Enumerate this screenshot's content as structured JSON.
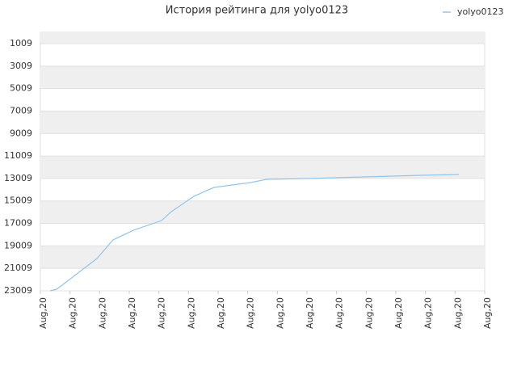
{
  "chart_data": {
    "type": "line",
    "title": "История рейтинга для yolyo0123",
    "x": [
      0.33,
      0.55,
      1.09,
      1.91,
      2.45,
      3.14,
      4.09,
      4.42,
      5.18,
      5.86,
      7.09,
      7.64,
      9.0,
      10.91,
      12.82,
      14.13
    ],
    "series": [
      {
        "name": "yolyo0123",
        "color": "#92c5ee",
        "values": [
          23009,
          22866,
          21788,
          20134,
          18481,
          17618,
          16756,
          15965,
          14598,
          13807,
          13376,
          13088,
          13016,
          12873,
          12729,
          12657
        ]
      }
    ],
    "ylim": [
      23009,
      1
    ],
    "yticks": [
      1009,
      3009,
      5009,
      7009,
      9009,
      11009,
      13009,
      15009,
      17009,
      19009,
      21009,
      23009
    ],
    "xlim": [
      0,
      15
    ],
    "xticks": [
      {
        "value": 0,
        "label": "Aug,20"
      },
      {
        "value": 1,
        "label": "Aug,20"
      },
      {
        "value": 2,
        "label": "Aug,20"
      },
      {
        "value": 3,
        "label": "Aug,20"
      },
      {
        "value": 4,
        "label": "Aug,20"
      },
      {
        "value": 5,
        "label": "Aug,20"
      },
      {
        "value": 6,
        "label": "Aug,20"
      },
      {
        "value": 7,
        "label": "Aug,20"
      },
      {
        "value": 8,
        "label": "Aug,20"
      },
      {
        "value": 9,
        "label": "Aug,20"
      },
      {
        "value": 10,
        "label": "Aug,20"
      },
      {
        "value": 11,
        "label": "Aug,20"
      },
      {
        "value": 12,
        "label": "Aug,20"
      },
      {
        "value": 13,
        "label": "Aug,20"
      },
      {
        "value": 14,
        "label": "Aug,20"
      },
      {
        "value": 15,
        "label": "Aug,20"
      }
    ],
    "grid": true,
    "legend": "top-right"
  }
}
